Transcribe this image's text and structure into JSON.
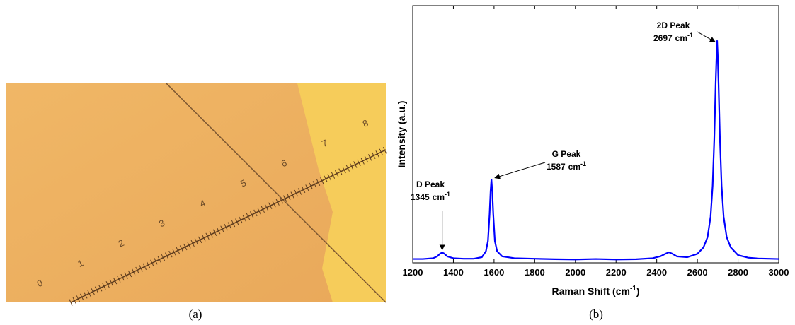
{
  "photo": {
    "scale_labels": [
      "0",
      "1",
      "2",
      "3",
      "4",
      "5",
      "6",
      "7",
      "8"
    ]
  },
  "captions": [
    "(a)",
    "(b)"
  ],
  "chart_data": {
    "type": "line",
    "xlabel": "Raman Shift (cm",
    "xlabel_exp": "-1",
    "xlabel_end": ")",
    "ylabel": "Intensity (a.u.)",
    "color": "#0000ff",
    "xlim": [
      1200,
      3000
    ],
    "xticks": [
      1200,
      1400,
      1600,
      1800,
      2000,
      2200,
      2400,
      2600,
      2800,
      3000
    ],
    "ylim": [
      0,
      100
    ],
    "x": [
      1200,
      1250,
      1300,
      1320,
      1335,
      1345,
      1355,
      1370,
      1400,
      1450,
      1500,
      1540,
      1560,
      1570,
      1578,
      1583,
      1587,
      1591,
      1596,
      1604,
      1615,
      1640,
      1700,
      1800,
      1900,
      2000,
      2100,
      2200,
      2300,
      2380,
      2420,
      2445,
      2460,
      2475,
      2500,
      2550,
      2600,
      2630,
      2650,
      2665,
      2675,
      2683,
      2690,
      2694,
      2697,
      2700,
      2704,
      2711,
      2719,
      2729,
      2744,
      2764,
      2800,
      2850,
      2900,
      2950,
      3000
    ],
    "values": [
      1.5,
      1.5,
      1.8,
      2.5,
      3.6,
      4,
      3.6,
      2.5,
      1.8,
      1.6,
      1.6,
      2.2,
      4.5,
      8.5,
      19,
      28,
      32.5,
      28,
      19,
      8.5,
      4.5,
      2.5,
      1.8,
      1.6,
      1.4,
      1.3,
      1.5,
      1.3,
      1.4,
      1.8,
      2.6,
      3.6,
      4.1,
      3.6,
      2.5,
      2.2,
      3.5,
      6,
      10,
      18,
      30,
      48,
      70,
      80,
      86.5,
      81,
      70,
      48,
      30,
      18,
      10,
      6,
      3,
      2,
      1.7,
      1.6,
      1.5
    ],
    "annotations": [
      {
        "name": "D Peak",
        "x": 1345,
        "unit": "cm",
        "exp": "-1"
      },
      {
        "name": "G Peak",
        "x": 1587,
        "unit": "cm",
        "exp": "-1"
      },
      {
        "name": "2D Peak",
        "x": 2697,
        "unit": "cm",
        "exp": "-1"
      }
    ]
  }
}
